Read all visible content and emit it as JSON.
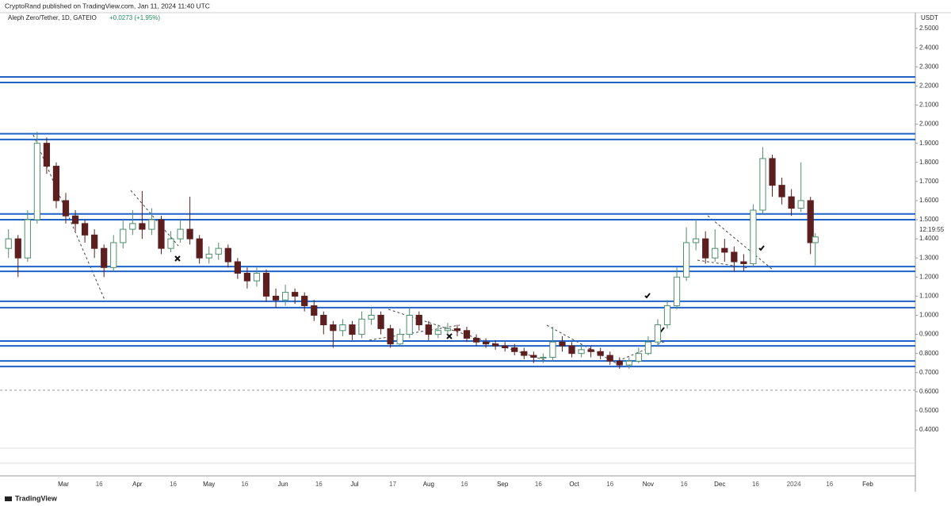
{
  "header": "CryptoRand published on TradingView.com, Jan 11, 2024 11:40 UTC",
  "footer": "TradingView",
  "chart_data": {
    "type": "candlestick",
    "title": "Aleph Zero/Tether, 1D, GATEIO",
    "subtitle": "+0.0273 (+1.95%)",
    "y_axis_label": "USDT",
    "countdown": "12:19:55",
    "up_color": "#4f8f6e",
    "down_color": "#5c1f1f",
    "level_color": "#1e63c8",
    "ylim": [
      0.28,
      2.575
    ],
    "yticks": [
      {
        "value": 2.5,
        "label": "2.5000"
      },
      {
        "value": 2.4,
        "label": "2.4000"
      },
      {
        "value": 2.3,
        "label": "2.3000"
      },
      {
        "value": 2.2,
        "label": "2.2000"
      },
      {
        "value": 2.1,
        "label": "2.1000"
      },
      {
        "value": 2.0,
        "label": "2.0000"
      },
      {
        "value": 1.9,
        "label": "1.9000"
      },
      {
        "value": 1.8,
        "label": "1.8000"
      },
      {
        "value": 1.7,
        "label": "1.7000"
      },
      {
        "value": 1.6,
        "label": "1.6000"
      },
      {
        "value": 1.5,
        "label": "1.5000"
      },
      {
        "value": 1.4,
        "label": "1.4000"
      },
      {
        "value": 1.3,
        "label": "1.3000"
      },
      {
        "value": 1.2,
        "label": "1.2000"
      },
      {
        "value": 1.1,
        "label": "1.1000"
      },
      {
        "value": 1.0,
        "label": "1.0000"
      },
      {
        "value": 0.9,
        "label": "0.9000"
      },
      {
        "value": 0.8,
        "label": "0.8000"
      },
      {
        "value": 0.7,
        "label": "0.7000"
      },
      {
        "value": 0.6,
        "label": "0.6000"
      },
      {
        "value": 0.5,
        "label": "0.5000"
      },
      {
        "value": 0.4,
        "label": "0.4000"
      }
    ],
    "xticks": [
      {
        "value": "03-01",
        "label": "Mar"
      },
      {
        "value": "03-16",
        "label": "16"
      },
      {
        "value": "04-01",
        "label": "Apr"
      },
      {
        "value": "04-16",
        "label": "16"
      },
      {
        "value": "05-01",
        "label": "May"
      },
      {
        "value": "05-16",
        "label": "16"
      },
      {
        "value": "06-01",
        "label": "Jun"
      },
      {
        "value": "06-16",
        "label": "16"
      },
      {
        "value": "07-01",
        "label": "Jul"
      },
      {
        "value": "07-17",
        "label": "17"
      },
      {
        "value": "08-01",
        "label": "Aug"
      },
      {
        "value": "08-16",
        "label": "16"
      },
      {
        "value": "09-01",
        "label": "Sep"
      },
      {
        "value": "09-16",
        "label": "16"
      },
      {
        "value": "10-01",
        "label": "Oct"
      },
      {
        "value": "10-16",
        "label": "16"
      },
      {
        "value": "11-01",
        "label": "Nov"
      },
      {
        "value": "11-16",
        "label": "16"
      },
      {
        "value": "12-01",
        "label": "Dec"
      },
      {
        "value": "12-16",
        "label": "16"
      },
      {
        "value": "01-01",
        "label": "2024"
      },
      {
        "value": "01-16",
        "label": "16"
      },
      {
        "value": "02-01",
        "label": "Feb"
      }
    ],
    "levels": [
      2.247,
      2.218,
      1.95,
      1.92,
      1.53,
      1.5,
      1.255,
      1.23,
      1.073,
      1.04,
      0.865,
      0.84,
      0.761,
      0.732
    ],
    "x": [
      "02-06",
      "02-10",
      "02-14",
      "02-18",
      "02-22",
      "02-26",
      "03-02",
      "03-06",
      "03-10",
      "03-14",
      "03-18",
      "03-22",
      "03-26",
      "03-30",
      "04-03",
      "04-07",
      "04-11",
      "04-15",
      "04-19",
      "04-23",
      "04-27",
      "05-01",
      "05-05",
      "05-09",
      "05-13",
      "05-17",
      "05-21",
      "05-25",
      "05-29",
      "06-02",
      "06-06",
      "06-10",
      "06-14",
      "06-18",
      "06-22",
      "06-26",
      "06-30",
      "07-04",
      "07-08",
      "07-12",
      "07-16",
      "07-20",
      "07-24",
      "07-28",
      "08-01",
      "08-05",
      "08-09",
      "08-13",
      "08-17",
      "08-21",
      "08-25",
      "08-29",
      "09-02",
      "09-06",
      "09-10",
      "09-14",
      "09-18",
      "09-22",
      "09-26",
      "09-30",
      "10-04",
      "10-08",
      "10-12",
      "10-16",
      "10-20",
      "10-24",
      "10-28",
      "11-01",
      "11-05",
      "11-09",
      "11-13",
      "11-17",
      "11-21",
      "11-25",
      "11-29",
      "12-03",
      "12-07",
      "12-11",
      "12-15",
      "12-19",
      "12-23",
      "12-27",
      "12-31",
      "01-04",
      "01-08",
      "01-10"
    ],
    "open": [
      1.35,
      1.4,
      1.3,
      1.5,
      1.9,
      1.78,
      1.6,
      1.52,
      1.48,
      1.42,
      1.35,
      1.25,
      1.38,
      1.45,
      1.48,
      1.45,
      1.5,
      1.35,
      1.4,
      1.45,
      1.4,
      1.3,
      1.32,
      1.35,
      1.28,
      1.22,
      1.18,
      1.22,
      1.1,
      1.08,
      1.12,
      1.1,
      1.05,
      1.0,
      0.95,
      0.92,
      0.95,
      0.9,
      0.98,
      1.0,
      0.93,
      0.85,
      0.9,
      1.0,
      0.95,
      0.9,
      0.92,
      0.93,
      0.92,
      0.88,
      0.86,
      0.85,
      0.84,
      0.83,
      0.81,
      0.79,
      0.78,
      0.78,
      0.86,
      0.84,
      0.8,
      0.82,
      0.81,
      0.79,
      0.76,
      0.74,
      0.76,
      0.8,
      0.86,
      0.95,
      1.05,
      1.2,
      1.38,
      1.4,
      1.3,
      1.35,
      1.33,
      1.28,
      1.27,
      1.55,
      1.82,
      1.68,
      1.62,
      1.56,
      1.6,
      1.38
    ],
    "high": [
      1.45,
      1.42,
      1.55,
      1.96,
      1.93,
      1.8,
      1.64,
      1.55,
      1.5,
      1.45,
      1.37,
      1.42,
      1.5,
      1.55,
      1.65,
      1.56,
      1.52,
      1.44,
      1.5,
      1.62,
      1.42,
      1.36,
      1.38,
      1.37,
      1.3,
      1.25,
      1.25,
      1.24,
      1.14,
      1.16,
      1.14,
      1.12,
      1.08,
      1.02,
      0.97,
      0.98,
      0.97,
      1.02,
      1.04,
      1.02,
      0.95,
      0.93,
      1.04,
      1.02,
      0.97,
      0.95,
      0.96,
      0.95,
      0.94,
      0.9,
      0.88,
      0.87,
      0.86,
      0.85,
      0.83,
      0.81,
      0.8,
      0.94,
      0.89,
      0.86,
      0.85,
      0.84,
      0.83,
      0.81,
      0.78,
      0.78,
      0.83,
      0.89,
      0.98,
      1.08,
      1.25,
      1.46,
      1.5,
      1.44,
      1.45,
      1.4,
      1.36,
      1.32,
      1.58,
      1.88,
      1.84,
      1.72,
      1.66,
      1.8,
      1.62,
      1.43
    ],
    "low": [
      1.3,
      1.2,
      1.28,
      1.48,
      1.74,
      1.56,
      1.48,
      1.44,
      1.38,
      1.3,
      1.2,
      1.23,
      1.35,
      1.42,
      1.4,
      1.42,
      1.32,
      1.33,
      1.38,
      1.37,
      1.27,
      1.27,
      1.29,
      1.25,
      1.19,
      1.14,
      1.15,
      1.07,
      1.04,
      1.05,
      1.06,
      1.02,
      0.97,
      0.9,
      0.83,
      0.89,
      0.87,
      0.88,
      0.95,
      0.9,
      0.83,
      0.84,
      0.88,
      0.92,
      0.87,
      0.88,
      0.9,
      0.89,
      0.86,
      0.84,
      0.83,
      0.82,
      0.81,
      0.79,
      0.77,
      0.75,
      0.75,
      0.76,
      0.81,
      0.78,
      0.78,
      0.78,
      0.77,
      0.74,
      0.72,
      0.72,
      0.75,
      0.79,
      0.84,
      0.93,
      1.03,
      1.18,
      1.34,
      1.27,
      1.28,
      1.28,
      1.23,
      1.23,
      1.25,
      1.53,
      1.62,
      1.58,
      1.52,
      1.54,
      1.32,
      1.26
    ],
    "close": [
      1.4,
      1.3,
      1.5,
      1.9,
      1.78,
      1.6,
      1.52,
      1.48,
      1.42,
      1.35,
      1.25,
      1.38,
      1.45,
      1.48,
      1.45,
      1.5,
      1.35,
      1.4,
      1.45,
      1.4,
      1.3,
      1.32,
      1.35,
      1.28,
      1.22,
      1.18,
      1.22,
      1.1,
      1.08,
      1.12,
      1.1,
      1.05,
      1.0,
      0.95,
      0.92,
      0.95,
      0.9,
      0.98,
      1.0,
      0.93,
      0.85,
      0.9,
      1.0,
      0.95,
      0.9,
      0.92,
      0.93,
      0.92,
      0.88,
      0.86,
      0.85,
      0.84,
      0.83,
      0.81,
      0.79,
      0.78,
      0.78,
      0.86,
      0.84,
      0.8,
      0.82,
      0.81,
      0.79,
      0.76,
      0.74,
      0.76,
      0.8,
      0.86,
      0.95,
      1.05,
      1.2,
      1.38,
      1.4,
      1.3,
      1.35,
      1.33,
      1.28,
      1.27,
      1.55,
      1.82,
      1.68,
      1.62,
      1.56,
      1.6,
      1.38,
      1.41
    ]
  }
}
